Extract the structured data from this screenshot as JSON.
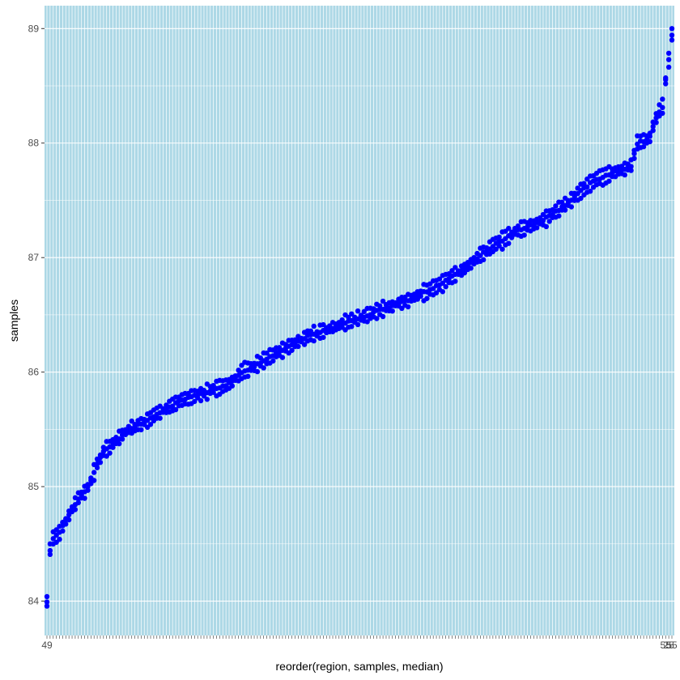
{
  "chart_data": {
    "type": "scatter",
    "title": "",
    "xlabel": "reorder(region, samples, median)",
    "ylabel": "samples",
    "ylim": [
      83.7,
      89.2
    ],
    "y_ticks": [
      84,
      85,
      86,
      87,
      88,
      89
    ],
    "y_tick_labels": [
      "84",
      "85",
      "86",
      "87",
      "88",
      "89"
    ],
    "x_visible_tick_fragments": [
      "49",
      "55",
      "25",
      "55"
    ],
    "category_count": 200,
    "grid": true,
    "legend": "none",
    "colors": {
      "panel_background": "#add8e6",
      "grid": "#ffffff",
      "points": "#0000ff",
      "axis_text": "#4d4d4d"
    },
    "series": [
      {
        "median_profile": [
          [
            0,
            84.0
          ],
          [
            0.5,
            84.3
          ],
          [
            1,
            84.45
          ],
          [
            2,
            84.55
          ],
          [
            4,
            84.6
          ],
          [
            6,
            84.7
          ],
          [
            8,
            84.8
          ],
          [
            10,
            84.9
          ],
          [
            12,
            84.95
          ],
          [
            14,
            85.05
          ],
          [
            16,
            85.2
          ],
          [
            18,
            85.3
          ],
          [
            20,
            85.35
          ],
          [
            22,
            85.4
          ],
          [
            24,
            85.45
          ],
          [
            26,
            85.5
          ],
          [
            30,
            85.55
          ],
          [
            34,
            85.62
          ],
          [
            38,
            85.68
          ],
          [
            42,
            85.74
          ],
          [
            46,
            85.78
          ],
          [
            50,
            85.82
          ],
          [
            54,
            85.86
          ],
          [
            58,
            85.9
          ],
          [
            60,
            85.95
          ],
          [
            62,
            86.0
          ],
          [
            66,
            86.05
          ],
          [
            70,
            86.12
          ],
          [
            74,
            86.18
          ],
          [
            78,
            86.24
          ],
          [
            82,
            86.3
          ],
          [
            86,
            86.34
          ],
          [
            90,
            86.38
          ],
          [
            94,
            86.42
          ],
          [
            98,
            86.46
          ],
          [
            102,
            86.5
          ],
          [
            106,
            86.54
          ],
          [
            110,
            86.58
          ],
          [
            114,
            86.62
          ],
          [
            118,
            86.67
          ],
          [
            122,
            86.72
          ],
          [
            126,
            86.78
          ],
          [
            130,
            86.85
          ],
          [
            134,
            86.93
          ],
          [
            138,
            87.02
          ],
          [
            142,
            87.1
          ],
          [
            146,
            87.17
          ],
          [
            150,
            87.24
          ],
          [
            154,
            87.28
          ],
          [
            158,
            87.33
          ],
          [
            162,
            87.4
          ],
          [
            166,
            87.48
          ],
          [
            170,
            87.58
          ],
          [
            174,
            87.67
          ],
          [
            178,
            87.72
          ],
          [
            182,
            87.76
          ],
          [
            186,
            87.8
          ],
          [
            188,
            88.0
          ],
          [
            190,
            88.02
          ],
          [
            192,
            88.05
          ],
          [
            193,
            88.15
          ],
          [
            194,
            88.22
          ],
          [
            195,
            88.28
          ],
          [
            196,
            88.32
          ],
          [
            197,
            88.55
          ],
          [
            198,
            88.72
          ],
          [
            199,
            88.95
          ]
        ]
      }
    ]
  }
}
